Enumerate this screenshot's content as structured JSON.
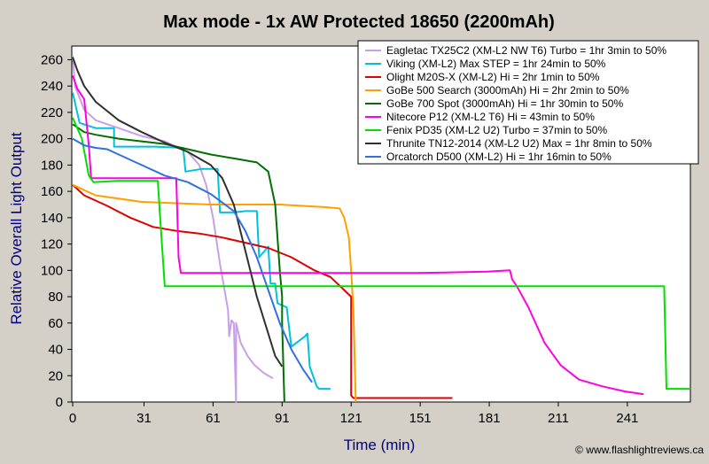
{
  "chart_data": {
    "type": "line",
    "title": "Max mode - 1x AW Protected 18650 (2200mAh)",
    "xlabel": "Time (min)",
    "ylabel": "Relative Overall Light Output",
    "credit": "© www.flashlightreviews.ca",
    "xlim": [
      0,
      268
    ],
    "ylim": [
      0,
      265
    ],
    "xticks": [
      0,
      31,
      61,
      91,
      121,
      151,
      181,
      211,
      241
    ],
    "yticks": [
      0,
      20,
      40,
      60,
      80,
      100,
      120,
      140,
      160,
      180,
      200,
      220,
      240,
      260
    ],
    "grid": false,
    "legend_position": "top-right",
    "series": [
      {
        "name": "Eagletac TX25C2 (XM-L2 NW T6) Turbo = 1hr 3min to 50%",
        "color": "#c8a0e8",
        "points": [
          [
            0,
            263
          ],
          [
            1,
            240
          ],
          [
            5,
            222
          ],
          [
            10,
            214
          ],
          [
            20,
            208
          ],
          [
            30,
            202
          ],
          [
            40,
            198
          ],
          [
            50,
            190
          ],
          [
            55,
            180
          ],
          [
            58,
            165
          ],
          [
            61,
            140
          ],
          [
            64,
            105
          ],
          [
            66,
            85
          ],
          [
            67.5,
            70
          ],
          [
            68,
            50
          ],
          [
            69,
            62
          ],
          [
            70,
            60
          ],
          [
            71,
            0
          ],
          [
            71,
            60
          ],
          [
            73,
            45
          ],
          [
            76,
            35
          ],
          [
            79,
            28
          ],
          [
            83,
            22
          ],
          [
            87,
            18
          ]
        ]
      },
      {
        "name": "Viking (XM-L2) Max STEP = 1hr 24min to 50%",
        "color": "#00c0e0",
        "points": [
          [
            0,
            235
          ],
          [
            3,
            212
          ],
          [
            10,
            208
          ],
          [
            18,
            208
          ],
          [
            18,
            194
          ],
          [
            36,
            194
          ],
          [
            48,
            193
          ],
          [
            49,
            175
          ],
          [
            56,
            177
          ],
          [
            63,
            177
          ],
          [
            64,
            144
          ],
          [
            70,
            144
          ],
          [
            75,
            145
          ],
          [
            80,
            145
          ],
          [
            81,
            110
          ],
          [
            85,
            118
          ],
          [
            86,
            90
          ],
          [
            88,
            90
          ],
          [
            89,
            75
          ],
          [
            93,
            72
          ],
          [
            95,
            42
          ],
          [
            101,
            50
          ],
          [
            102,
            52
          ],
          [
            103,
            27
          ],
          [
            106,
            12
          ],
          [
            107,
            10
          ],
          [
            110,
            10
          ],
          [
            112,
            10
          ]
        ]
      },
      {
        "name": "Olight M20S-X (XM-L2) Hi = 2hr 1min to 50%",
        "color": "#e00000",
        "points": [
          [
            0,
            165
          ],
          [
            5,
            157
          ],
          [
            15,
            149
          ],
          [
            25,
            140
          ],
          [
            35,
            133
          ],
          [
            45,
            130
          ],
          [
            55,
            128
          ],
          [
            65,
            125
          ],
          [
            75,
            121
          ],
          [
            85,
            117
          ],
          [
            95,
            110
          ],
          [
            105,
            100
          ],
          [
            112,
            95
          ],
          [
            118,
            85
          ],
          [
            121,
            80
          ],
          [
            121,
            5
          ],
          [
            122,
            3
          ],
          [
            165,
            3
          ]
        ]
      },
      {
        "name": "GoBe 500 Search (3000mAh) Hi = 2hr 2min to 50%",
        "color": "#ffa000",
        "points": [
          [
            0,
            165
          ],
          [
            10,
            157
          ],
          [
            30,
            152
          ],
          [
            60,
            150
          ],
          [
            90,
            150
          ],
          [
            110,
            148
          ],
          [
            116,
            147
          ],
          [
            118,
            140
          ],
          [
            120,
            125
          ],
          [
            121,
            100
          ],
          [
            122,
            70
          ],
          [
            123,
            0
          ]
        ]
      },
      {
        "name": "GoBe 700 Spot (3000mAh) Hi = 1hr 30min to 50%",
        "color": "#007000",
        "points": [
          [
            0,
            211
          ],
          [
            5,
            205
          ],
          [
            10,
            203
          ],
          [
            20,
            200
          ],
          [
            30,
            198
          ],
          [
            40,
            196
          ],
          [
            50,
            192
          ],
          [
            60,
            188
          ],
          [
            70,
            185
          ],
          [
            80,
            182
          ],
          [
            85,
            175
          ],
          [
            88,
            150
          ],
          [
            90,
            100
          ],
          [
            91,
            80
          ],
          [
            91,
            60
          ],
          [
            92,
            0
          ]
        ]
      },
      {
        "name": "Nitecore P12 (XM-L2 T6) Hi = 43min to 50%",
        "color": "#ff00e0",
        "points": [
          [
            0,
            248
          ],
          [
            2,
            238
          ],
          [
            5,
            230
          ],
          [
            7,
            195
          ],
          [
            8,
            170
          ],
          [
            12,
            170
          ],
          [
            45,
            170
          ],
          [
            46,
            110
          ],
          [
            47,
            98
          ],
          [
            60,
            98
          ],
          [
            100,
            98
          ],
          [
            150,
            98
          ],
          [
            180,
            99
          ],
          [
            190,
            100
          ],
          [
            191,
            93
          ],
          [
            193,
            88
          ],
          [
            198,
            72
          ],
          [
            205,
            45
          ],
          [
            212,
            28
          ],
          [
            220,
            17
          ],
          [
            230,
            12
          ],
          [
            240,
            8
          ],
          [
            248,
            6
          ]
        ]
      },
      {
        "name": "Fenix PD35 (XM-L2 U2) Turbo = 37min to 50%",
        "color": "#00e000",
        "points": [
          [
            0,
            216
          ],
          [
            4,
            200
          ],
          [
            7,
            172
          ],
          [
            9,
            167
          ],
          [
            20,
            168
          ],
          [
            37,
            168
          ],
          [
            38,
            140
          ],
          [
            40,
            88
          ],
          [
            60,
            88
          ],
          [
            100,
            88
          ],
          [
            150,
            88
          ],
          [
            200,
            88
          ],
          [
            240,
            88
          ],
          [
            257,
            88
          ],
          [
            258,
            10
          ],
          [
            268,
            10
          ]
        ]
      },
      {
        "name": "Thrunite TN12-2014 (XM-L2 U2) Max = 1hr 8min to 50%",
        "color": "#303030",
        "points": [
          [
            0,
            262
          ],
          [
            2,
            252
          ],
          [
            5,
            240
          ],
          [
            10,
            228
          ],
          [
            20,
            214
          ],
          [
            30,
            205
          ],
          [
            40,
            197
          ],
          [
            50,
            190
          ],
          [
            60,
            180
          ],
          [
            65,
            170
          ],
          [
            70,
            150
          ],
          [
            75,
            115
          ],
          [
            80,
            80
          ],
          [
            85,
            52
          ],
          [
            88,
            35
          ],
          [
            91,
            27
          ]
        ]
      },
      {
        "name": "Orcatorch D500 (XM-L2) Hi = 1hr 16min to 50%",
        "color": "#3070e0",
        "points": [
          [
            0,
            200
          ],
          [
            5,
            195
          ],
          [
            10,
            193
          ],
          [
            15,
            192
          ],
          [
            20,
            188
          ],
          [
            30,
            180
          ],
          [
            40,
            172
          ],
          [
            50,
            167
          ],
          [
            60,
            158
          ],
          [
            70,
            145
          ],
          [
            75,
            130
          ],
          [
            80,
            110
          ],
          [
            85,
            85
          ],
          [
            90,
            60
          ],
          [
            95,
            40
          ],
          [
            100,
            25
          ],
          [
            104,
            15
          ]
        ]
      }
    ]
  }
}
